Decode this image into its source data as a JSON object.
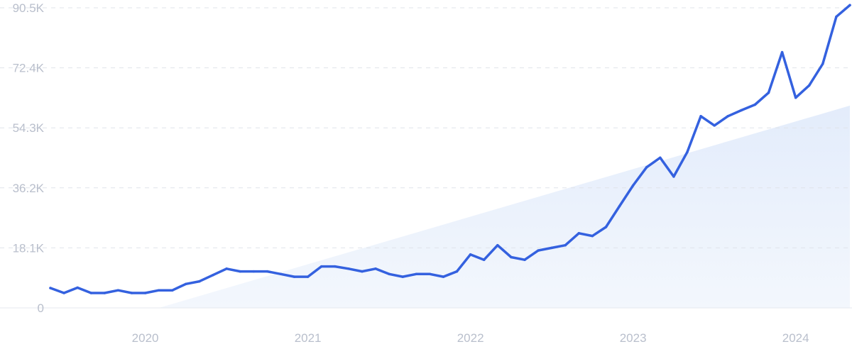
{
  "chart_data": {
    "type": "line",
    "title": "",
    "xlabel": "",
    "ylabel": "",
    "ylim": [
      0,
      90500
    ],
    "y_ticks": [
      {
        "value": 0,
        "label": "0"
      },
      {
        "value": 18100,
        "label": "18.1K"
      },
      {
        "value": 36200,
        "label": "36.2K"
      },
      {
        "value": 54300,
        "label": "54.3K"
      },
      {
        "value": 72400,
        "label": "72.4K"
      },
      {
        "value": 90500,
        "label": "90.5K"
      }
    ],
    "x_ticks": [
      {
        "value": "2020-01",
        "label": "2020"
      },
      {
        "value": "2021-01",
        "label": "2021"
      },
      {
        "value": "2022-01",
        "label": "2022"
      },
      {
        "value": "2023-01",
        "label": "2023"
      },
      {
        "value": "2024-01",
        "label": "2024"
      }
    ],
    "x_range": [
      "2019-06",
      "2024-05"
    ],
    "grid": true,
    "legend": "none",
    "colors": {
      "line": "#3461df",
      "trend_fill": "#e8f0fc",
      "grid": "#dfe3ea",
      "tick_text": "#b9bfcc"
    },
    "trend": {
      "start": {
        "x": "2020-02",
        "y": 0
      },
      "end": {
        "x": "2024-05",
        "y": 61000
      }
    },
    "series": [
      {
        "x": [
          "2019-06",
          "2019-07",
          "2019-08",
          "2019-09",
          "2019-10",
          "2019-11",
          "2019-12",
          "2020-01",
          "2020-02",
          "2020-03",
          "2020-04",
          "2020-05",
          "2020-06",
          "2020-07",
          "2020-08",
          "2020-09",
          "2020-10",
          "2020-11",
          "2020-12",
          "2021-01",
          "2021-02",
          "2021-03",
          "2021-04",
          "2021-05",
          "2021-06",
          "2021-07",
          "2021-08",
          "2021-09",
          "2021-10",
          "2021-11",
          "2021-12",
          "2022-01",
          "2022-02",
          "2022-03",
          "2022-04",
          "2022-05",
          "2022-06",
          "2022-07",
          "2022-08",
          "2022-09",
          "2022-10",
          "2022-11",
          "2022-12",
          "2023-01",
          "2023-02",
          "2023-03",
          "2023-04",
          "2023-05",
          "2023-06",
          "2023-07",
          "2023-08",
          "2023-09",
          "2023-10",
          "2023-11",
          "2023-12",
          "2024-01",
          "2024-02",
          "2024-03",
          "2024-04",
          "2024-05"
        ],
        "values": [
          6000,
          4500,
          6100,
          4500,
          4500,
          5300,
          4500,
          4500,
          5300,
          5300,
          7200,
          8000,
          9900,
          11800,
          11000,
          11000,
          11000,
          10200,
          9400,
          9400,
          12500,
          12500,
          11800,
          11000,
          11800,
          10200,
          9400,
          10200,
          10200,
          9400,
          11000,
          16100,
          14500,
          18900,
          15300,
          14500,
          17300,
          18100,
          18900,
          22500,
          21700,
          24400,
          30700,
          36900,
          42400,
          45300,
          39600,
          47000,
          57800,
          55000,
          57800,
          59600,
          61300,
          64900,
          77100,
          63400,
          67100,
          73600,
          87800,
          91300
        ]
      }
    ]
  }
}
